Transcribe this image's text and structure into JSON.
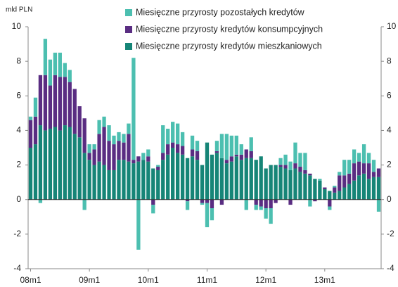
{
  "chart_data": {
    "type": "stacked_bar",
    "y_label": "mld PLN",
    "categories": [
      "08m1",
      null,
      null,
      null,
      null,
      null,
      null,
      null,
      null,
      null,
      null,
      null,
      "09m1",
      null,
      null,
      null,
      null,
      null,
      null,
      null,
      null,
      null,
      null,
      null,
      "10m1",
      null,
      null,
      null,
      null,
      null,
      null,
      null,
      null,
      null,
      null,
      null,
      "11m1",
      null,
      null,
      null,
      null,
      null,
      null,
      null,
      null,
      null,
      null,
      null,
      "12m1",
      null,
      null,
      null,
      null,
      null,
      null,
      null,
      null,
      null,
      null,
      null,
      "13m1",
      null,
      null,
      null,
      null,
      null,
      null,
      null,
      null,
      null,
      null,
      null
    ],
    "series": [
      {
        "name": "Miesięczne przyrosty kredytów mieszkaniowych",
        "color": "#168577",
        "values": [
          3.0,
          3.2,
          4.3,
          4.0,
          4.1,
          4.2,
          4.0,
          4.3,
          4.2,
          3.8,
          3.6,
          2.7,
          2.3,
          2.0,
          2.2,
          2.0,
          1.7,
          1.7,
          2.3,
          2.3,
          2.2,
          2.1,
          2.2,
          2.3,
          2.2,
          1.8,
          1.7,
          2.3,
          2.6,
          3.0,
          2.7,
          2.6,
          2.4,
          2.5,
          2.3,
          2.0,
          3.3,
          2.6,
          2.7,
          2.4,
          2.1,
          2.2,
          2.5,
          2.3,
          2.4,
          2.4,
          2.3,
          2.5,
          1.8,
          2.0,
          2.0,
          1.9,
          1.8,
          1.7,
          1.8,
          1.6,
          1.5,
          1.4,
          1.2,
          1.1,
          0.6,
          0.5,
          0.4,
          0.5,
          0.7,
          0.9,
          1.1,
          1.4,
          1.5,
          1.2,
          1.3,
          1.3
        ]
      },
      {
        "name": "Miesięczne przyrosty kredytów konsumpcyjnych",
        "color": "#5a2d82",
        "values": [
          1.6,
          1.6,
          2.9,
          3.2,
          2.5,
          3.0,
          3.1,
          2.8,
          2.6,
          2.6,
          1.8,
          2.0,
          0.4,
          0.9,
          1.6,
          2.2,
          1.7,
          1.5,
          1.1,
          1.0,
          1.6,
          0.2,
          0.3,
          0.0,
          0.3,
          -0.3,
          0.2,
          0.4,
          0.6,
          0.3,
          0.5,
          0.5,
          -0.1,
          0.4,
          0.5,
          -0.2,
          -0.2,
          -0.5,
          0.1,
          -0.3,
          0.2,
          0.3,
          0.1,
          0.3,
          0.5,
          0.4,
          -0.3,
          -0.4,
          -0.5,
          -0.5,
          -0.2,
          0.1,
          0.2,
          -0.3,
          0.3,
          0.3,
          0.2,
          0.1,
          -0.1,
          0.0,
          0.1,
          -0.4,
          0.3,
          0.9,
          0.7,
          0.6,
          1.0,
          0.8,
          0.6,
          0.9,
          0.3,
          0.5
        ]
      },
      {
        "name": "Miesięczne przyrosty pozostałych kredytów",
        "color": "#4cbfb0",
        "values": [
          0.2,
          1.1,
          -0.2,
          2.1,
          1.5,
          1.3,
          1.4,
          0.8,
          0.7,
          0.0,
          0.0,
          -0.6,
          0.5,
          0.3,
          0.8,
          0.6,
          0.9,
          0.5,
          0.5,
          0.5,
          0.6,
          5.9,
          -2.9,
          0.4,
          0.4,
          -0.5,
          0.1,
          1.6,
          0.9,
          1.2,
          1.2,
          0.8,
          -0.5,
          0.8,
          0.6,
          -0.1,
          -1.4,
          -0.7,
          0.6,
          1.4,
          1.5,
          1.2,
          1.1,
          0.6,
          -0.6,
          0.8,
          -0.3,
          -0.2,
          -0.6,
          -0.9,
          0.0,
          0.4,
          0.6,
          0.5,
          1.2,
          0.8,
          1.0,
          -0.4,
          0.0,
          0.1,
          0.0,
          -0.2,
          0.1,
          0.2,
          0.9,
          0.8,
          0.8,
          0.5,
          1.1,
          0.6,
          0.7,
          -0.7
        ]
      }
    ],
    "ylim": [
      -4,
      10
    ],
    "yticks": [
      -4,
      -2,
      0,
      2,
      4,
      6,
      8,
      10
    ],
    "y2lim": [
      -4,
      10
    ],
    "y2ticks": [
      -4,
      -2,
      0,
      2,
      4,
      6,
      8,
      10
    ]
  }
}
